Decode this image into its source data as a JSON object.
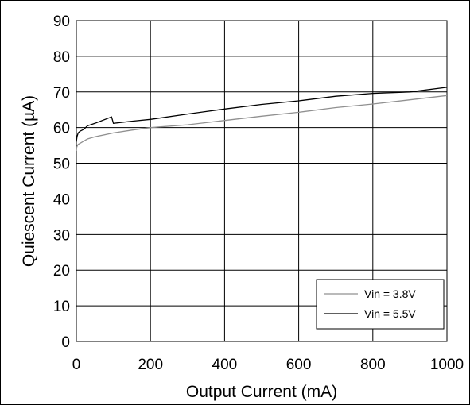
{
  "chart_data": {
    "type": "line",
    "title": "",
    "xlabel": "Output Current (mA)",
    "ylabel": "Quiescent Current (µA)",
    "xlim": [
      0,
      1000
    ],
    "ylim": [
      0,
      90
    ],
    "xticks": [
      0,
      200,
      400,
      600,
      800,
      1000
    ],
    "yticks": [
      0,
      10,
      20,
      30,
      40,
      50,
      60,
      70,
      80,
      90
    ],
    "grid": true,
    "legend_position": "bottom-right",
    "series": [
      {
        "name": "Vin = 3.8V",
        "color": "#909090",
        "x": [
          0,
          1,
          3,
          5,
          10,
          20,
          30,
          50,
          100,
          150,
          200,
          300,
          400,
          500,
          600,
          700,
          800,
          900,
          1000
        ],
        "y": [
          53.5,
          54.5,
          55.0,
          55.3,
          55.6,
          56.2,
          56.8,
          57.4,
          58.5,
          59.3,
          60.0,
          60.8,
          62.0,
          63.2,
          64.3,
          65.6,
          66.6,
          67.8,
          69.0
        ]
      },
      {
        "name": "Vin = 5.5V",
        "color": "#000000",
        "x": [
          0,
          2,
          5,
          10,
          20,
          30,
          50,
          95,
          100,
          150,
          200,
          300,
          400,
          500,
          600,
          700,
          800,
          900,
          1000
        ],
        "y": [
          56.0,
          57.5,
          58.5,
          59.0,
          59.5,
          60.5,
          61.2,
          63.0,
          61.2,
          61.8,
          62.3,
          63.8,
          65.2,
          66.5,
          67.5,
          68.8,
          69.6,
          70.0,
          71.3
        ]
      }
    ]
  }
}
